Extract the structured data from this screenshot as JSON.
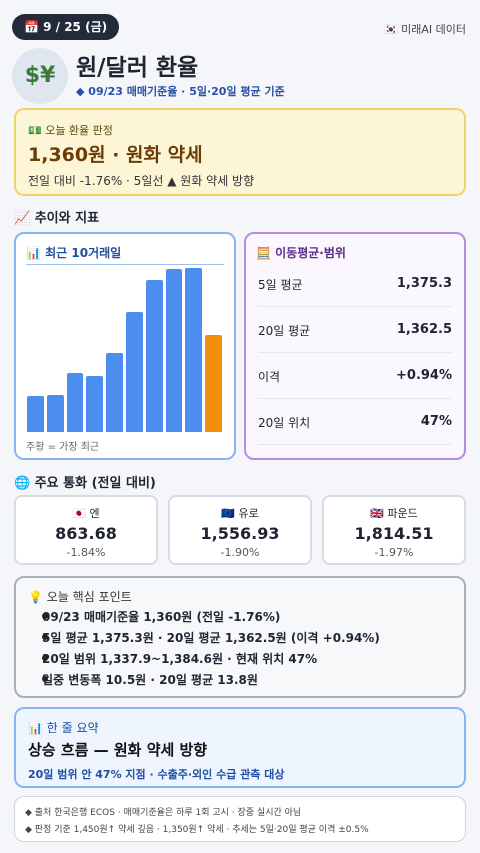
{
  "header": {
    "date": "📅 9 / 25 (금)",
    "source": "🇰🇷 미래AI 데이터",
    "icon": "$¥",
    "title": "원/달러 환율",
    "subtitle": "◆ 09/23 매매기준율 · 5일·20일 평균 기준"
  },
  "verdict": {
    "label": "💵 오늘 환율 판정",
    "headline": "1,360원 · 원화 약세",
    "detail": "전일 대비 -1.76% · 5일선 ▲ 원화 약세 방향"
  },
  "trend_section": "📈 추이와 지표",
  "trend": {
    "title": "📊 최근 10거래일",
    "values": [
      36,
      37,
      59,
      56,
      79,
      119,
      151,
      162,
      163,
      96
    ],
    "color": "#4b8ef0",
    "highlight_color": "#f0900a",
    "note": "주황 = 가장 최근"
  },
  "indicators": {
    "title": "🧮 이동평균·범위",
    "rows": [
      [
        "5일 평균",
        "1,375.3"
      ],
      [
        "20일 평균",
        "1,362.5"
      ],
      [
        "이격",
        "+0.94%"
      ],
      [
        "20일 위치",
        "47%"
      ]
    ]
  },
  "currency_section": "🌐 주요 통화 (전일 대비)",
  "currencies": [
    {
      "name": "🇯🇵 엔",
      "value": "863.68",
      "change": "-1.84%"
    },
    {
      "name": "🇪🇺 유로",
      "value": "1,556.93",
      "change": "-1.90%"
    },
    {
      "name": "🇬🇧 파운드",
      "value": "1,814.51",
      "change": "-1.97%"
    }
  ],
  "points": {
    "title": "💡 오늘 핵심 포인트",
    "items": [
      "09/23 매매기준율 1,360원 (전일 -1.76%)",
      "5일 평균 1,375.3원 · 20일 평균 1,362.5원 (이격 +0.94%)",
      "20일 범위 1,337.9~1,384.6원 · 현재 위치 47%",
      "일중 변동폭 10.5원 · 20일 평균 13.8원"
    ]
  },
  "summary": {
    "title": "📊 한 줄 요약",
    "headline": "상승 흐름 — 원화 약세 방향",
    "detail": "20일 범위 안 47% 지점 · 수출주·외인 수급 관측 대상"
  },
  "footer": [
    "◆ 출처 한국은행 ECOS · 매매기준율은 하루 1회 고시 · 장중 실시간 아님",
    "◆ 판정 기준 1,450원↑ 약세 깊음 · 1,350원↑ 약세 · 추세는 5일·20일 평균 이격 ±0.5%"
  ]
}
